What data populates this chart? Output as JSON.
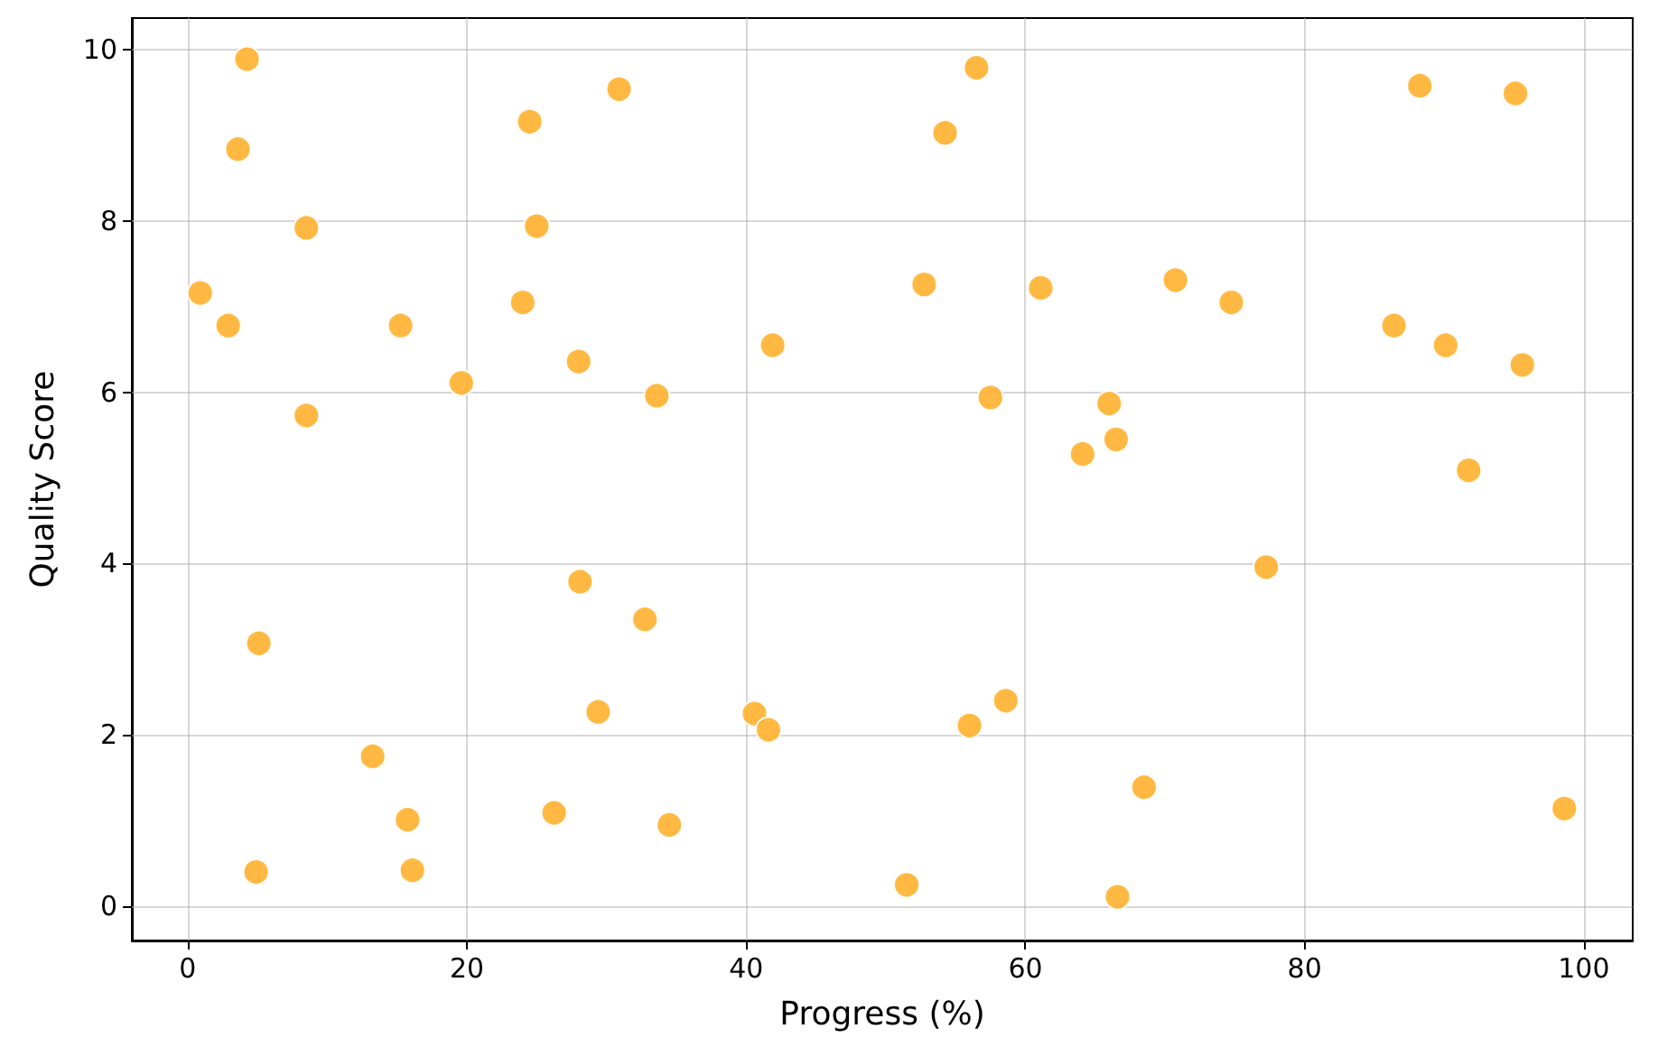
{
  "chart_data": {
    "type": "scatter",
    "xlabel": "Progress (%)",
    "ylabel": "Quality Score",
    "x": [
      0.9,
      2.9,
      3.6,
      4.25,
      5.1,
      4.9,
      8.5,
      8.5,
      13.25,
      15.25,
      15.75,
      16.1,
      19.6,
      24.0,
      24.5,
      25.0,
      26.25,
      28.0,
      28.1,
      29.4,
      30.9,
      32.75,
      33.6,
      34.5,
      40.6,
      41.6,
      41.9,
      51.5,
      52.75,
      54.25,
      56.0,
      56.5,
      57.5,
      58.6,
      61.1,
      64.1,
      66.0,
      66.5,
      66.6,
      68.5,
      70.75,
      74.75,
      77.25,
      86.4,
      88.25,
      90.1,
      91.75,
      95.1,
      95.6,
      98.6
    ],
    "series": [
      {
        "color": "#ffb12e",
        "values": [
          7.16,
          6.78,
          8.84,
          9.89,
          3.07,
          0.4,
          7.92,
          5.73,
          1.75,
          6.78,
          1.01,
          0.42,
          6.11,
          7.05,
          9.16,
          7.94,
          1.09,
          6.36,
          3.79,
          2.27,
          9.54,
          3.35,
          5.96,
          0.95,
          2.25,
          2.06,
          6.55,
          0.25,
          7.26,
          9.03,
          2.11,
          9.79,
          5.94,
          2.4,
          7.22,
          5.28,
          5.87,
          5.45,
          0.11,
          1.39,
          7.31,
          7.05,
          3.96,
          6.78,
          9.58,
          6.55,
          5.09,
          9.49,
          6.32,
          1.14
        ]
      }
    ],
    "xlim": [
      -4,
      103.5
    ],
    "ylim": [
      -0.4,
      10.37
    ],
    "xticks": [
      0,
      20,
      40,
      60,
      80,
      100
    ],
    "yticks": [
      0,
      2,
      4,
      6,
      8,
      10
    ],
    "grid": true,
    "marker": "circle"
  }
}
